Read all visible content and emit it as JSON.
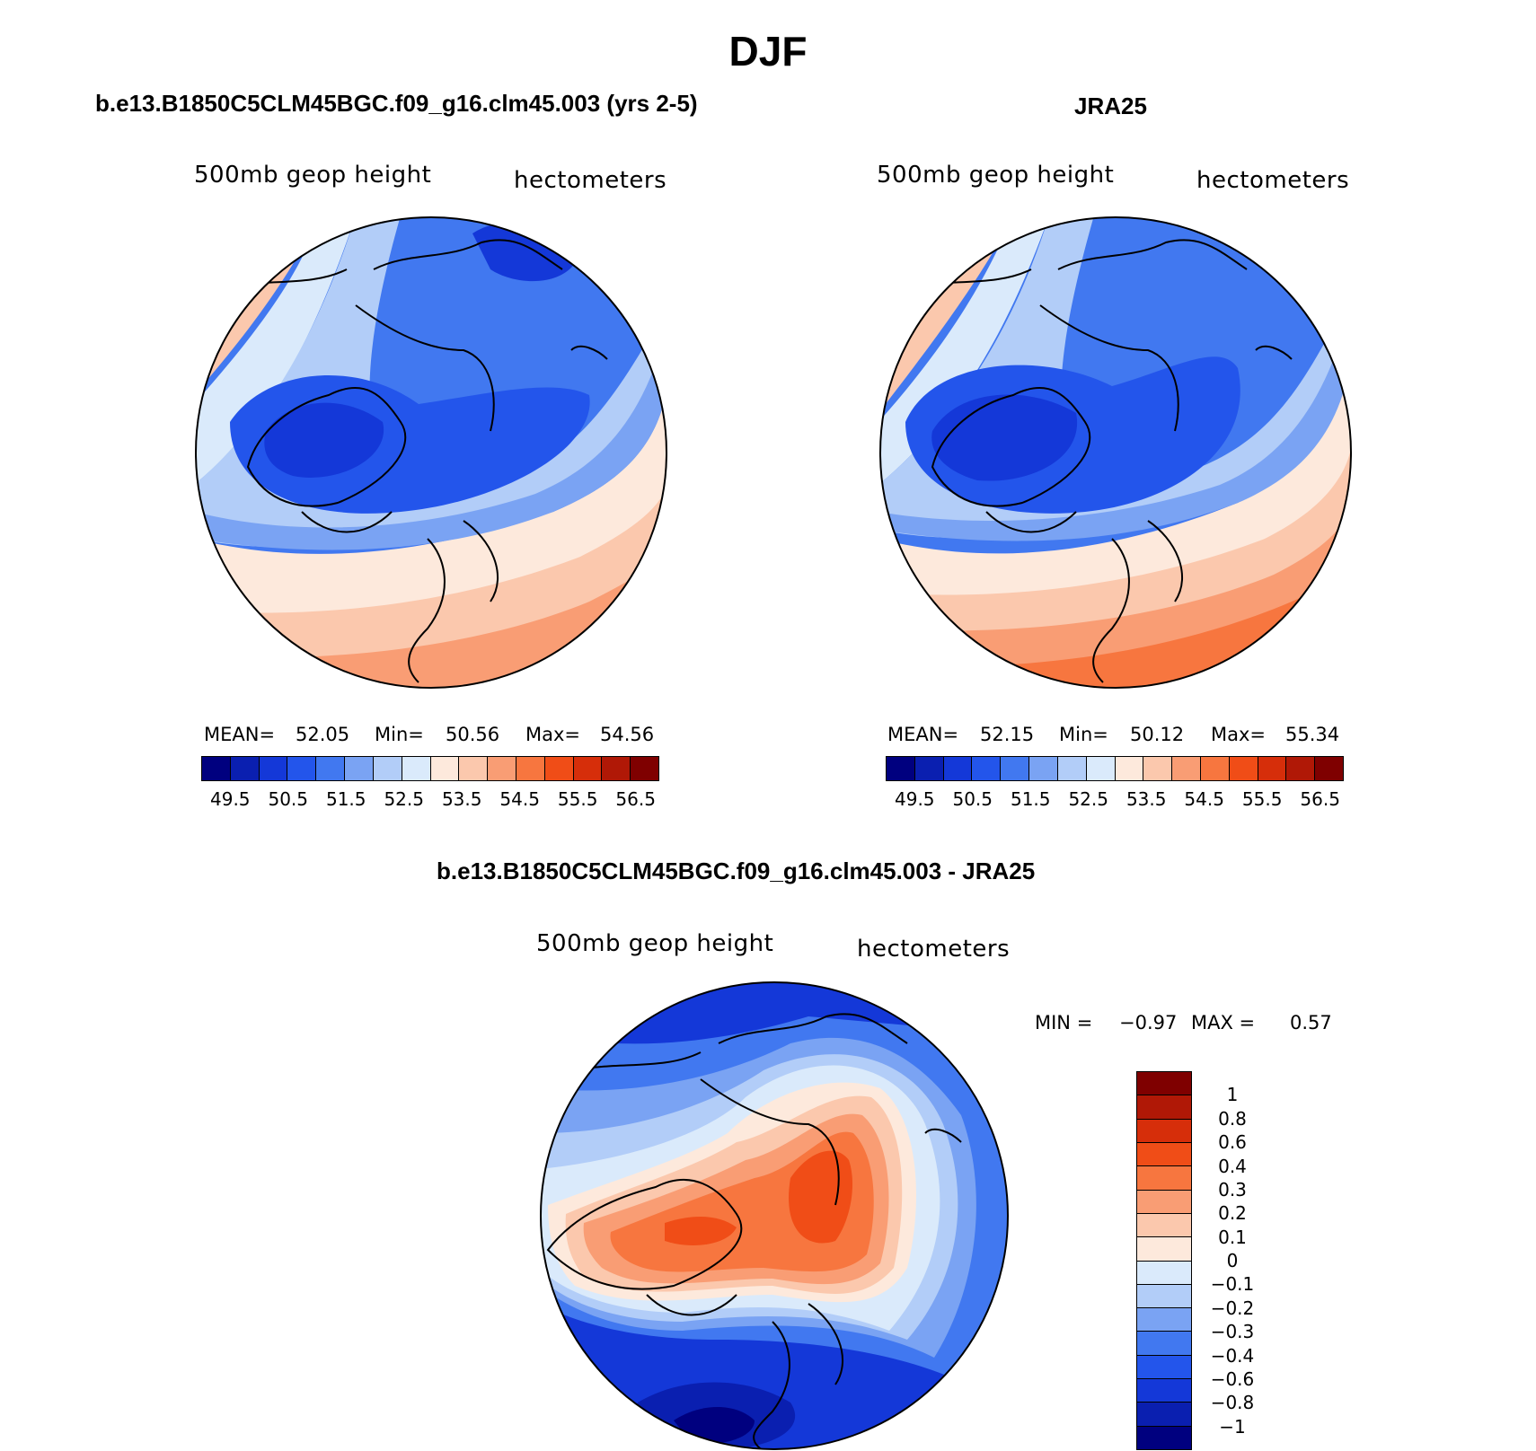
{
  "title": "DJF",
  "panels": {
    "model": {
      "title": "b.e13.B1850C5CLM45BGC.f09_g16.clm45.003 (yrs 2-5)",
      "variable": "500mb geop height",
      "units": "hectometers",
      "mean_label": "MEAN=",
      "mean": "52.05",
      "min_label": "Min=",
      "min": "50.56",
      "max_label": "Max=",
      "max": "54.56"
    },
    "obs": {
      "title": "JRA25",
      "variable": "500mb geop height",
      "units": "hectometers",
      "mean_label": "MEAN=",
      "mean": "52.15",
      "min_label": "Min=",
      "min": "50.12",
      "max_label": "Max=",
      "max": "55.34"
    },
    "diff": {
      "title": "b.e13.B1850C5CLM45BGC.f09_g16.clm45.003 - JRA25",
      "variable": "500mb geop height",
      "units": "hectometers",
      "min_label": "MIN =",
      "min": "−0.97",
      "max_label": "MAX =",
      "max": "0.57"
    }
  },
  "abs_colorbar": {
    "ticks": [
      "49.5",
      "50.5",
      "51.5",
      "52.5",
      "53.5",
      "54.5",
      "55.5",
      "56.5"
    ],
    "colors": [
      "#00007f",
      "#0a1fb0",
      "#1438d8",
      "#2355eb",
      "#4178f0",
      "#7aa3f3",
      "#b2cdf8",
      "#daeafb",
      "#fde9dc",
      "#fbc8ad",
      "#f99d74",
      "#f7763f",
      "#f04d17",
      "#d62e0a",
      "#b01806",
      "#7f0000"
    ]
  },
  "diff_colorbar": {
    "labels": [
      "1",
      "0.8",
      "0.6",
      "0.4",
      "0.3",
      "0.2",
      "0.1",
      "0",
      "−0.1",
      "−0.2",
      "−0.3",
      "−0.4",
      "−0.6",
      "−0.8",
      "−1"
    ],
    "colors": [
      "#7f0000",
      "#b01806",
      "#d62e0a",
      "#f04d17",
      "#f7763f",
      "#f99d74",
      "#fbc8ad",
      "#fde9dc",
      "#daeafb",
      "#b2cdf8",
      "#7aa3f3",
      "#4178f0",
      "#2355eb",
      "#1438d8",
      "#0a1fb0",
      "#00007f"
    ]
  },
  "colors": {
    "land_outline": "#000000",
    "background": "#ffffff"
  }
}
